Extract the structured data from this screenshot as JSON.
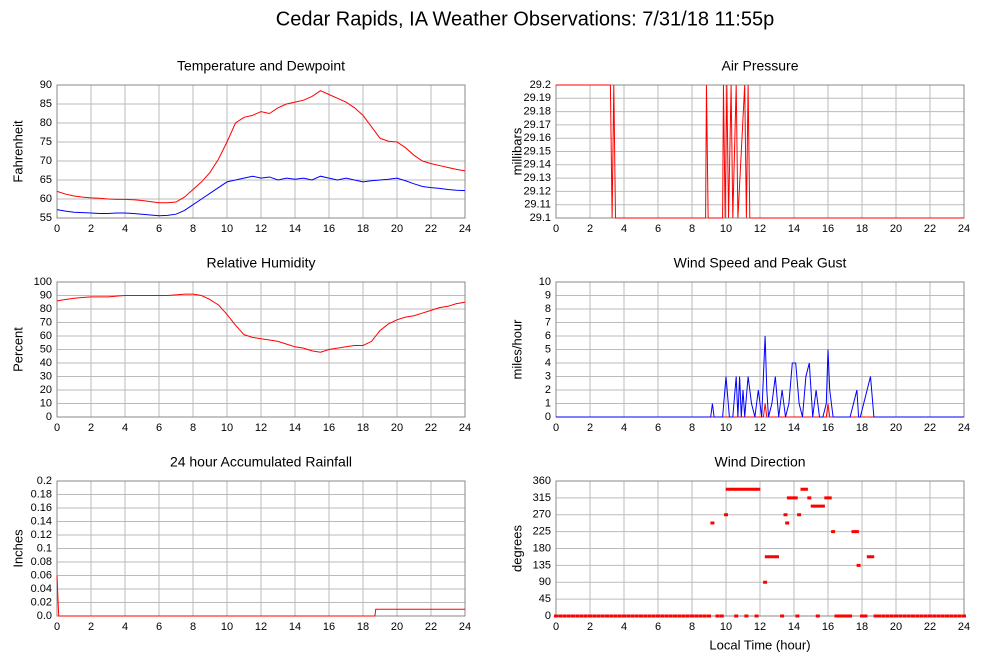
{
  "title": "Cedar Rapids, IA Weather Observations: 7/31/18 11:55p",
  "chart_data": [
    {
      "type": "line",
      "title": "Temperature and Dewpoint",
      "ylabel": "Fahrenheit",
      "xlim": [
        0,
        24
      ],
      "xticks": [
        0,
        2,
        4,
        6,
        8,
        10,
        12,
        14,
        16,
        18,
        20,
        22,
        24
      ],
      "ylim": [
        55,
        90
      ],
      "yticks": [
        55,
        60,
        65,
        70,
        75,
        80,
        85,
        90
      ],
      "grid": true,
      "series": [
        {
          "color": "#ff0000",
          "x": [
            0,
            0.5,
            1,
            1.5,
            2,
            2.5,
            3,
            3.5,
            4,
            4.5,
            5,
            5.5,
            6,
            6.5,
            7,
            7.5,
            8,
            8.5,
            9,
            9.5,
            10,
            10.5,
            11,
            11.5,
            12,
            12.5,
            13,
            13.5,
            14,
            14.5,
            15,
            15.5,
            16,
            16.5,
            17,
            17.5,
            18,
            18.5,
            19,
            19.5,
            20,
            20.5,
            21,
            21.5,
            22,
            22.5,
            23,
            23.5,
            24
          ],
          "values": [
            62,
            61.3,
            60.8,
            60.5,
            60.3,
            60.2,
            60,
            59.9,
            59.9,
            59.8,
            59.6,
            59.3,
            59,
            59,
            59.2,
            60.5,
            62.5,
            64.5,
            67,
            70.5,
            75,
            80,
            81.5,
            82,
            83,
            82.5,
            84,
            85,
            85.5,
            86,
            87,
            88.5,
            87.5,
            86.5,
            85.5,
            84,
            82,
            79,
            76,
            75.2,
            75,
            73.5,
            71.5,
            70,
            69.3,
            68.8,
            68.3,
            67.8,
            67.4
          ]
        },
        {
          "color": "#0000ff",
          "x": [
            0,
            0.5,
            1,
            1.5,
            2,
            2.5,
            3,
            3.5,
            4,
            4.5,
            5,
            5.5,
            6,
            6.5,
            7,
            7.5,
            8,
            8.5,
            9,
            9.5,
            10,
            10.5,
            11,
            11.5,
            12,
            12.5,
            13,
            13.5,
            14,
            14.5,
            15,
            15.5,
            16,
            16.5,
            17,
            17.5,
            18,
            18.5,
            19,
            19.5,
            20,
            20.5,
            21,
            21.5,
            22,
            22.5,
            23,
            23.5,
            24
          ],
          "values": [
            57.2,
            56.8,
            56.5,
            56.4,
            56.3,
            56.2,
            56.2,
            56.3,
            56.3,
            56.2,
            56,
            55.8,
            55.6,
            55.7,
            56,
            57,
            58.5,
            60,
            61.5,
            63,
            64.5,
            65,
            65.5,
            66,
            65.5,
            65.8,
            65,
            65.5,
            65.2,
            65.5,
            65,
            66,
            65.5,
            65,
            65.5,
            65,
            64.5,
            64.8,
            65,
            65.2,
            65.5,
            64.8,
            64,
            63.3,
            63,
            62.8,
            62.5,
            62.3,
            62.2
          ]
        }
      ]
    },
    {
      "type": "line",
      "title": "Air Pressure",
      "ylabel": "millibars",
      "xlim": [
        0,
        24
      ],
      "xticks": [
        0,
        2,
        4,
        6,
        8,
        10,
        12,
        14,
        16,
        18,
        20,
        22,
        24
      ],
      "ylim": [
        29.1,
        29.2
      ],
      "yticks": [
        29.1,
        29.11,
        29.12,
        29.13,
        29.14,
        29.15,
        29.16,
        29.17,
        29.18,
        29.19,
        29.2
      ],
      "grid": true,
      "series": [
        {
          "color": "#ff0000",
          "x": [
            0,
            3.2,
            3.3,
            3.4,
            3.5,
            8.8,
            8.85,
            8.95,
            9.8,
            9.85,
            9.95,
            10.05,
            10.15,
            10.3,
            10.4,
            10.6,
            10.7,
            11.1,
            11.2,
            11.3,
            11.4,
            24
          ],
          "values": [
            29.2,
            29.2,
            29.1,
            29.2,
            29.1,
            29.1,
            29.2,
            29.1,
            29.1,
            29.2,
            29.1,
            29.2,
            29.1,
            29.2,
            29.1,
            29.2,
            29.1,
            29.2,
            29.1,
            29.2,
            29.1,
            29.1
          ]
        }
      ]
    },
    {
      "type": "line",
      "title": "Relative Humidity",
      "ylabel": "Percent",
      "xlim": [
        0,
        24
      ],
      "xticks": [
        0,
        2,
        4,
        6,
        8,
        10,
        12,
        14,
        16,
        18,
        20,
        22,
        24
      ],
      "ylim": [
        0,
        100
      ],
      "yticks": [
        0,
        10,
        20,
        30,
        40,
        50,
        60,
        70,
        80,
        90,
        100
      ],
      "grid": true,
      "series": [
        {
          "color": "#ff0000",
          "x": [
            0,
            0.5,
            1,
            1.5,
            2,
            2.5,
            3,
            3.5,
            4,
            4.5,
            5,
            5.5,
            6,
            6.5,
            7,
            7.5,
            8,
            8.5,
            9,
            9.5,
            10,
            10.5,
            11,
            11.5,
            12,
            12.5,
            13,
            13.5,
            14,
            14.5,
            15,
            15.5,
            16,
            16.5,
            17,
            17.5,
            18,
            18.5,
            19,
            19.5,
            20,
            20.5,
            21,
            21.5,
            22,
            22.5,
            23,
            23.5,
            24
          ],
          "values": [
            86,
            87,
            88,
            88.5,
            89,
            89,
            89,
            89.5,
            90,
            90,
            90,
            90,
            90,
            90,
            90.5,
            91,
            91,
            90,
            87,
            83,
            76,
            68,
            61,
            59,
            58,
            57,
            56,
            54,
            52,
            51,
            49,
            48,
            50,
            51,
            52,
            53,
            53,
            56,
            64,
            69,
            72,
            74,
            75,
            77,
            79,
            81,
            82,
            84,
            85
          ]
        }
      ]
    },
    {
      "type": "line",
      "title": "Wind Speed and Peak Gust",
      "ylabel": "miles/hour",
      "xlim": [
        0,
        24
      ],
      "xticks": [
        0,
        2,
        4,
        6,
        8,
        10,
        12,
        14,
        16,
        18,
        20,
        22,
        24
      ],
      "ylim": [
        0,
        10
      ],
      "yticks": [
        0,
        1,
        2,
        3,
        4,
        5,
        6,
        7,
        8,
        9,
        10
      ],
      "grid": true,
      "series": [
        {
          "color": "#ff0000",
          "x": [
            0,
            12.2,
            12.3,
            12.4,
            15.9,
            16,
            16.1,
            24
          ],
          "values": [
            0,
            0,
            1,
            0,
            0,
            1,
            0,
            0
          ]
        },
        {
          "color": "#0000ff",
          "x": [
            0,
            9,
            9.1,
            9.2,
            9.3,
            9.8,
            10,
            10.2,
            10.4,
            10.6,
            10.7,
            10.8,
            10.9,
            11,
            11.1,
            11.3,
            11.5,
            11.7,
            11.9,
            12.1,
            12.3,
            12.4,
            12.5,
            12.7,
            12.9,
            13.1,
            13.3,
            13.5,
            13.7,
            13.9,
            14.1,
            14.3,
            14.5,
            14.7,
            14.9,
            15.1,
            15.3,
            15.5,
            15.7,
            15.9,
            16,
            16.1,
            16.3,
            16.5,
            17.3,
            17.5,
            17.7,
            17.8,
            17.9,
            18.3,
            18.5,
            18.7,
            24
          ],
          "values": [
            0,
            0,
            0,
            1,
            0,
            0,
            3,
            0,
            0,
            3,
            0,
            3,
            0,
            2,
            0,
            3,
            1,
            0,
            2,
            0,
            6,
            2,
            0,
            1,
            3,
            0,
            2,
            0,
            1,
            4,
            4,
            1,
            0,
            3,
            4,
            0,
            2,
            0,
            0,
            1,
            5,
            2,
            0,
            0,
            0,
            1,
            2,
            0,
            0,
            2,
            3,
            0,
            0
          ]
        }
      ]
    },
    {
      "type": "line",
      "title": "24 hour Accumulated Rainfall",
      "ylabel": "Inches",
      "xlim": [
        0,
        24
      ],
      "xticks": [
        0,
        2,
        4,
        6,
        8,
        10,
        12,
        14,
        16,
        18,
        20,
        22,
        24
      ],
      "ylim": [
        0,
        0.2
      ],
      "yticks": [
        {
          "value": 0,
          "label": "0.0"
        },
        0.02,
        0.04,
        0.06,
        0.08,
        0.1,
        0.12,
        0.14,
        0.16,
        0.18,
        0.2
      ],
      "grid": true,
      "series": [
        {
          "color": "#ff0000",
          "x": [
            0,
            0.1,
            18.7,
            18.75,
            24
          ],
          "values": [
            0.06,
            0,
            0,
            0.01,
            0.01
          ]
        }
      ]
    },
    {
      "type": "scatter",
      "title": "Wind Direction",
      "ylabel": "degrees",
      "xlabel": "Local Time (hour)",
      "xlim": [
        0,
        24
      ],
      "xticks": [
        0,
        2,
        4,
        6,
        8,
        10,
        12,
        14,
        16,
        18,
        20,
        22,
        24
      ],
      "ylim": [
        0,
        360
      ],
      "yticks": [
        0,
        45,
        90,
        135,
        180,
        225,
        270,
        315,
        360
      ],
      "grid": true,
      "series": [
        {
          "color": "#ff0000",
          "x": [
            0,
            0.25,
            0.5,
            0.75,
            1,
            1.25,
            1.5,
            1.75,
            2,
            2.25,
            2.5,
            2.75,
            3,
            3.25,
            3.5,
            3.75,
            4,
            4.25,
            4.5,
            4.75,
            5,
            5.25,
            5.5,
            5.75,
            6,
            6.25,
            6.5,
            6.75,
            7,
            7.25,
            7.5,
            7.75,
            8,
            8.25,
            8.5,
            8.75,
            9,
            9.2,
            9.5,
            9.75,
            10,
            10.1,
            10.3,
            10.5,
            10.7,
            10.9,
            11.1,
            11.3,
            11.5,
            11.7,
            11.9,
            10.6,
            11.2,
            11.8,
            12.3,
            12.4,
            12.6,
            12.8,
            13,
            13.3,
            13.5,
            13.6,
            13.7,
            13.9,
            14.1,
            14.3,
            14.5,
            14.7,
            14.9,
            15.1,
            15.3,
            15.5,
            15.7,
            15.9,
            16.1,
            16.3,
            14.2,
            15.4,
            16.5,
            16.7,
            16.9,
            17.1,
            17.3,
            17.5,
            17.7,
            17.8,
            18,
            18.2,
            18.4,
            18.6,
            18.8,
            19,
            19.25,
            19.5,
            19.75,
            20,
            20.25,
            20.5,
            20.75,
            21,
            21.25,
            21.5,
            21.75,
            22,
            22.25,
            22.5,
            22.75,
            23,
            23.25,
            23.5,
            23.75,
            24
          ],
          "values": [
            0,
            0,
            0,
            0,
            0,
            0,
            0,
            0,
            0,
            0,
            0,
            0,
            0,
            0,
            0,
            0,
            0,
            0,
            0,
            0,
            0,
            0,
            0,
            0,
            0,
            0,
            0,
            0,
            0,
            0,
            0,
            0,
            0,
            0,
            0,
            0,
            0,
            248,
            0,
            0,
            270,
            338,
            338,
            338,
            338,
            338,
            338,
            338,
            338,
            338,
            338,
            0,
            0,
            0,
            90,
            158,
            158,
            158,
            158,
            0,
            270,
            248,
            315,
            315,
            315,
            270,
            338,
            338,
            315,
            293,
            293,
            293,
            293,
            315,
            315,
            225,
            0,
            0,
            0,
            0,
            0,
            0,
            0,
            225,
            225,
            135,
            0,
            0,
            158,
            158,
            0,
            0,
            0,
            0,
            0,
            0,
            0,
            0,
            0,
            0,
            0,
            0,
            0,
            0,
            0,
            0,
            0,
            0,
            0,
            0,
            0,
            0
          ]
        }
      ]
    }
  ]
}
